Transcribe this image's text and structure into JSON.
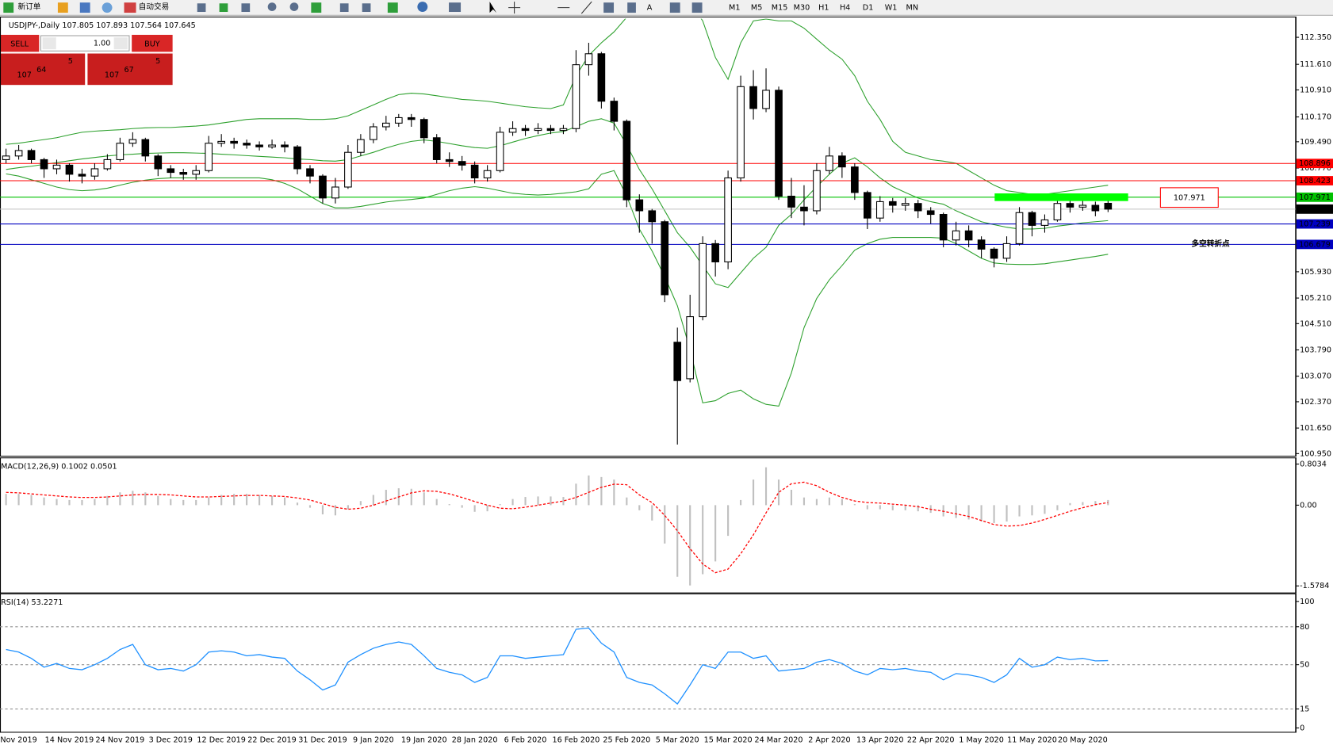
{
  "toolbar": {
    "new_order": "新订单",
    "auto_trading": "自动交易",
    "timeframes": [
      "M1",
      "M5",
      "M15",
      "M30",
      "H1",
      "H4",
      "D1",
      "W1",
      "MN"
    ]
  },
  "trade_panel": {
    "sell": "SELL",
    "buy": "BUY",
    "lots": "1.00",
    "bid": {
      "big": "107",
      "main": "64",
      "small": "5"
    },
    "ask": {
      "big": "107",
      "main": "67",
      "small": "5"
    }
  },
  "chart_data": [
    {
      "type": "candlestick",
      "title": "USDJPY-,Daily  107.805 107.893 107.564 107.645",
      "categories": [
        null,
        "Nov 2019",
        null,
        null,
        null,
        "14 Nov 2019",
        null,
        null,
        null,
        "24 Nov 2019",
        null,
        null,
        null,
        "3 Dec 2019",
        null,
        null,
        null,
        "12 Dec 2019",
        null,
        null,
        null,
        "22 Dec 2019",
        null,
        null,
        null,
        "31 Dec 2019",
        null,
        null,
        null,
        "9 Jan 2020",
        null,
        null,
        null,
        "19 Jan 2020",
        null,
        null,
        null,
        "28 Jan 2020",
        null,
        null,
        null,
        "6 Feb 2020",
        null,
        null,
        null,
        "16 Feb 2020",
        null,
        null,
        null,
        "25 Feb 2020",
        null,
        null,
        null,
        "5 Mar 2020",
        null,
        null,
        null,
        "15 Mar 2020",
        null,
        null,
        null,
        "24 Mar 2020",
        null,
        null,
        null,
        "2 Apr 2020",
        null,
        null,
        null,
        "13 Apr 2020",
        null,
        null,
        null,
        "22 Apr 2020",
        null,
        null,
        null,
        "1 May 2020",
        null,
        null,
        null,
        "11 May 2020",
        null,
        null,
        null,
        "20 May 2020",
        null,
        null
      ],
      "open": [
        109.0,
        109.1,
        109.25,
        109.0,
        108.75,
        108.85,
        108.6,
        108.55,
        108.75,
        109.0,
        109.45,
        109.55,
        109.1,
        108.75,
        108.65,
        108.6,
        108.7,
        109.45,
        109.5,
        109.45,
        109.4,
        109.35,
        109.4,
        109.35,
        108.75,
        108.55,
        107.95,
        108.25,
        109.2,
        109.55,
        109.9,
        110.0,
        110.15,
        110.1,
        109.6,
        109.0,
        108.95,
        108.85,
        108.5,
        108.7,
        109.75,
        109.85,
        109.8,
        109.85,
        109.8,
        109.85,
        111.6,
        111.9,
        110.6,
        110.05,
        107.9,
        107.6,
        107.3,
        104.0,
        103.0,
        104.7,
        106.7,
        106.2,
        108.5,
        111.0,
        110.4,
        110.9,
        108.0,
        107.7,
        107.6,
        108.7,
        109.1,
        108.8,
        108.1,
        107.4,
        107.85,
        107.75,
        107.8,
        107.6,
        107.5,
        106.8,
        107.05,
        106.8,
        106.55,
        106.3,
        106.7,
        107.55,
        107.2,
        107.35,
        107.8,
        107.7,
        107.75,
        107.805
      ],
      "high": [
        109.3,
        109.4,
        109.3,
        109.05,
        109.0,
        108.9,
        108.75,
        108.9,
        109.15,
        109.6,
        109.75,
        109.6,
        109.15,
        108.85,
        108.75,
        108.85,
        109.65,
        109.7,
        109.6,
        109.55,
        109.5,
        109.55,
        109.5,
        109.4,
        108.85,
        108.6,
        108.5,
        109.4,
        109.7,
        110.0,
        110.2,
        110.25,
        110.25,
        110.15,
        109.7,
        109.2,
        109.1,
        108.95,
        108.85,
        109.9,
        110.05,
        109.95,
        110.0,
        109.95,
        109.95,
        112.0,
        112.2,
        111.95,
        110.7,
        110.1,
        108.05,
        107.65,
        107.35,
        104.4,
        105.3,
        106.9,
        106.8,
        108.7,
        111.3,
        111.45,
        111.5,
        111.0,
        108.5,
        108.3,
        108.9,
        109.35,
        109.2,
        108.9,
        108.15,
        108.0,
        107.95,
        107.95,
        107.9,
        107.7,
        107.55,
        107.3,
        107.2,
        106.9,
        106.6,
        106.9,
        107.7,
        107.6,
        107.5,
        107.95,
        107.9,
        107.9,
        107.85,
        107.893
      ],
      "low": [
        108.9,
        109.0,
        108.9,
        108.5,
        108.6,
        108.4,
        108.35,
        108.45,
        108.7,
        108.95,
        109.35,
        108.95,
        108.55,
        108.5,
        108.45,
        108.45,
        108.65,
        109.35,
        109.3,
        109.3,
        109.25,
        109.3,
        109.2,
        108.6,
        108.35,
        107.8,
        107.8,
        108.2,
        109.1,
        109.45,
        109.8,
        109.9,
        109.9,
        109.45,
        108.9,
        108.8,
        108.7,
        108.35,
        108.4,
        108.65,
        109.65,
        109.65,
        109.7,
        109.7,
        109.7,
        109.75,
        111.3,
        110.4,
        109.8,
        107.7,
        107.0,
        106.7,
        105.1,
        101.2,
        102.9,
        104.6,
        105.8,
        106.0,
        108.4,
        110.1,
        110.3,
        107.9,
        107.4,
        107.2,
        107.5,
        108.6,
        108.5,
        107.9,
        107.1,
        107.3,
        107.55,
        107.6,
        107.4,
        107.25,
        106.6,
        106.65,
        106.6,
        106.3,
        106.05,
        106.2,
        106.65,
        106.9,
        107.0,
        107.3,
        107.55,
        107.6,
        107.45,
        107.564
      ],
      "close": [
        109.1,
        109.25,
        109.0,
        108.75,
        108.85,
        108.6,
        108.55,
        108.75,
        109.0,
        109.45,
        109.55,
        109.1,
        108.75,
        108.65,
        108.6,
        108.7,
        109.45,
        109.5,
        109.45,
        109.4,
        109.35,
        109.4,
        109.35,
        108.75,
        108.55,
        107.95,
        108.25,
        109.2,
        109.55,
        109.9,
        110.0,
        110.15,
        110.1,
        109.6,
        109.0,
        108.95,
        108.85,
        108.5,
        108.7,
        109.75,
        109.85,
        109.8,
        109.85,
        109.8,
        109.85,
        111.6,
        111.9,
        110.6,
        110.05,
        107.9,
        107.6,
        107.3,
        105.3,
        102.95,
        104.7,
        106.7,
        106.2,
        108.5,
        111.0,
        110.4,
        110.9,
        108.0,
        107.7,
        107.6,
        108.7,
        109.1,
        108.8,
        108.1,
        107.4,
        107.85,
        107.75,
        107.8,
        107.6,
        107.5,
        106.8,
        107.05,
        106.8,
        106.55,
        106.3,
        106.7,
        107.55,
        107.2,
        107.35,
        107.8,
        107.7,
        107.75,
        107.6,
        107.645
      ],
      "up_color": "#ffffff",
      "down_color": "#000000",
      "wick_color": "#000000",
      "bands": {
        "color": "#2ca02c",
        "upper": [
          109.42,
          109.45,
          109.5,
          109.55,
          109.6,
          109.68,
          109.75,
          109.78,
          109.8,
          109.82,
          109.85,
          109.87,
          109.88,
          109.88,
          109.9,
          109.92,
          109.95,
          110.0,
          110.05,
          110.1,
          110.12,
          110.12,
          110.12,
          110.12,
          110.1,
          110.1,
          110.12,
          110.2,
          110.35,
          110.5,
          110.65,
          110.78,
          110.82,
          110.8,
          110.75,
          110.7,
          110.65,
          110.63,
          110.6,
          110.55,
          110.5,
          110.45,
          110.42,
          110.4,
          110.5,
          111.3,
          111.85,
          112.2,
          112.5,
          112.9,
          113.3,
          113.6,
          113.8,
          113.7,
          113.3,
          112.8,
          111.8,
          111.2,
          112.2,
          112.8,
          112.85,
          112.8,
          112.8,
          112.6,
          112.3,
          112.0,
          111.75,
          111.3,
          110.6,
          110.1,
          109.5,
          109.2,
          109.1,
          109.0,
          108.96,
          108.9,
          108.7,
          108.5,
          108.3,
          108.15,
          108.1,
          108.05,
          108.05,
          108.1,
          108.15,
          108.2,
          108.25,
          108.3
        ],
        "middle": [
          108.73,
          108.78,
          108.82,
          108.87,
          108.92,
          108.97,
          109.02,
          109.06,
          109.1,
          109.13,
          109.15,
          109.17,
          109.18,
          109.19,
          109.19,
          109.18,
          109.17,
          109.15,
          109.13,
          109.11,
          109.09,
          109.07,
          109.05,
          109.02,
          109.0,
          108.97,
          108.96,
          109.0,
          109.1,
          109.2,
          109.32,
          109.42,
          109.5,
          109.54,
          109.5,
          109.44,
          109.38,
          109.33,
          109.31,
          109.38,
          109.48,
          109.58,
          109.66,
          109.73,
          109.77,
          109.9,
          110.05,
          110.12,
          110.0,
          109.4,
          108.73,
          108.2,
          107.6,
          107.0,
          106.6,
          106.1,
          105.6,
          105.5,
          105.9,
          106.3,
          106.6,
          107.2,
          107.5,
          107.9,
          108.26,
          108.6,
          108.9,
          109.05,
          108.8,
          108.5,
          108.26,
          108.1,
          107.95,
          107.85,
          107.78,
          107.6,
          107.45,
          107.3,
          107.22,
          107.15,
          107.1,
          107.1,
          107.12,
          107.18,
          107.22,
          107.27,
          107.3,
          107.33
        ],
        "lower": [
          108.61,
          108.55,
          108.45,
          108.35,
          108.25,
          108.18,
          108.15,
          108.17,
          108.22,
          108.3,
          108.38,
          108.44,
          108.48,
          108.5,
          108.5,
          108.5,
          108.5,
          108.5,
          108.5,
          108.5,
          108.5,
          108.45,
          108.35,
          108.2,
          108.0,
          107.8,
          107.68,
          107.68,
          107.72,
          107.78,
          107.84,
          107.88,
          107.91,
          107.95,
          108.05,
          108.15,
          108.22,
          108.26,
          108.22,
          108.15,
          108.08,
          108.05,
          108.03,
          108.05,
          108.08,
          108.12,
          108.2,
          108.6,
          108.7,
          108.0,
          107.1,
          106.5,
          105.8,
          105.0,
          103.8,
          102.34,
          102.4,
          102.6,
          102.69,
          102.45,
          102.3,
          102.25,
          103.16,
          104.4,
          105.2,
          105.71,
          106.1,
          106.52,
          106.7,
          106.82,
          106.87,
          106.87,
          106.87,
          106.87,
          106.85,
          106.7,
          106.5,
          106.3,
          106.17,
          106.14,
          106.13,
          106.13,
          106.15,
          106.2,
          106.25,
          106.3,
          106.35,
          106.41
        ]
      },
      "ylim": [
        100.88,
        112.86
      ],
      "yticks": [
        {
          "value": 112.35,
          "label": "112.350"
        },
        {
          "value": 111.61,
          "label": "111.610"
        },
        {
          "value": 110.91,
          "label": "110.910"
        },
        {
          "value": 110.17,
          "label": "110.170"
        },
        {
          "value": 109.49,
          "label": "109.490"
        },
        {
          "value": 108.77,
          "label": "108.770"
        },
        {
          "value": 105.93,
          "label": "105.930"
        },
        {
          "value": 105.21,
          "label": "105.210"
        },
        {
          "value": 104.51,
          "label": "104.510"
        },
        {
          "value": 103.79,
          "label": "103.790"
        },
        {
          "value": 103.07,
          "label": "103.070"
        },
        {
          "value": 102.37,
          "label": "102.370"
        },
        {
          "value": 101.65,
          "label": "101.650"
        },
        {
          "value": 100.95,
          "label": "100.950"
        }
      ],
      "hlines": [
        {
          "value": 108.896,
          "label": "108.896",
          "color": "#ff0000",
          "label_color": "#ffffff"
        },
        {
          "value": 108.423,
          "label": "108.423",
          "color": "#ff0000",
          "label_color": "#ffffff"
        },
        {
          "value": 107.971,
          "label": "107.971",
          "color": "#00c000",
          "label_color": "#000000",
          "highlight_color": "#00ff00"
        },
        {
          "value": 107.645,
          "label": "107.645",
          "color": "#c0c0c0",
          "label_color": "#ffffff"
        },
        {
          "value": 107.239,
          "label": "107.239",
          "color": "#0000c0",
          "label_color": "#ffffff"
        },
        {
          "value": 106.679,
          "label": "106.679",
          "color": "#0000c0",
          "label_color": "#ffffff"
        }
      ],
      "annotations": [
        {
          "text": "107.971",
          "color": "#ff0000"
        },
        {
          "text": "多空转折点",
          "color": "#00b400"
        }
      ]
    },
    {
      "type": "macd",
      "title": "MACD(12,26,9) 0.1002 0.0501",
      "values": [
        0.22,
        0.22,
        0.2,
        0.15,
        0.12,
        0.1,
        0.1,
        0.12,
        0.18,
        0.25,
        0.28,
        0.25,
        0.18,
        0.12,
        0.1,
        0.1,
        0.15,
        0.2,
        0.22,
        0.22,
        0.2,
        0.18,
        0.15,
        0.05,
        -0.05,
        -0.18,
        -0.2,
        -0.08,
        0.08,
        0.2,
        0.3,
        0.33,
        0.32,
        0.25,
        0.12,
        0.02,
        -0.05,
        -0.13,
        -0.12,
        0.02,
        0.12,
        0.16,
        0.17,
        0.17,
        0.16,
        0.42,
        0.58,
        0.55,
        0.5,
        0.15,
        -0.1,
        -0.3,
        -0.75,
        -1.4,
        -1.57,
        -1.35,
        -1.1,
        -0.6,
        0.1,
        0.5,
        0.74,
        0.5,
        0.3,
        0.15,
        0.12,
        0.15,
        0.12,
        0.02,
        -0.08,
        -0.08,
        -0.1,
        -0.1,
        -0.12,
        -0.15,
        -0.22,
        -0.25,
        -0.28,
        -0.32,
        -0.35,
        -0.32,
        -0.22,
        -0.2,
        -0.17,
        -0.1,
        0.04,
        0.06,
        0.08,
        0.1002
      ],
      "signal": [
        0.25,
        0.24,
        0.22,
        0.2,
        0.18,
        0.16,
        0.15,
        0.15,
        0.16,
        0.18,
        0.2,
        0.21,
        0.21,
        0.2,
        0.18,
        0.16,
        0.16,
        0.17,
        0.18,
        0.19,
        0.19,
        0.18,
        0.17,
        0.14,
        0.1,
        0.03,
        -0.04,
        -0.08,
        -0.06,
        0.0,
        0.08,
        0.16,
        0.24,
        0.28,
        0.27,
        0.22,
        0.15,
        0.07,
        0.0,
        -0.06,
        -0.07,
        -0.04,
        0.0,
        0.04,
        0.08,
        0.15,
        0.25,
        0.35,
        0.41,
        0.4,
        0.2,
        0.05,
        -0.2,
        -0.5,
        -0.85,
        -1.15,
        -1.32,
        -1.25,
        -0.95,
        -0.58,
        -0.15,
        0.25,
        0.42,
        0.45,
        0.38,
        0.25,
        0.15,
        0.08,
        0.05,
        0.04,
        0.02,
        0.0,
        -0.03,
        -0.08,
        -0.12,
        -0.17,
        -0.22,
        -0.3,
        -0.38,
        -0.41,
        -0.4,
        -0.35,
        -0.28,
        -0.2,
        -0.12,
        -0.05,
        0.01,
        0.0501
      ],
      "color": "#c0c0c0",
      "signal_color": "#ff0000",
      "ylim": [
        -1.716,
        0.891
      ],
      "yticks": [
        0.8034,
        {
          "value": 0,
          "label": "0.00"
        },
        -1.5784
      ]
    },
    {
      "type": "line",
      "title": "RSI(14) 53.2271",
      "values": [
        62,
        60,
        55,
        48,
        51,
        47,
        46,
        50,
        55,
        62,
        66,
        50,
        46,
        47,
        45,
        50,
        60,
        61,
        60,
        57,
        58,
        56,
        55,
        45,
        38,
        30,
        34,
        52,
        58,
        63,
        66,
        68,
        66,
        57,
        47,
        44,
        42,
        36,
        40,
        57,
        57,
        55,
        56,
        57,
        58,
        78,
        79,
        67,
        60,
        40,
        36,
        34,
        27,
        19,
        34,
        50,
        47,
        60,
        60,
        55,
        57,
        45,
        46,
        47,
        52,
        54,
        51,
        45,
        42,
        47,
        46,
        47,
        45,
        44,
        38,
        43,
        42,
        40,
        36,
        42,
        55,
        48,
        50,
        56,
        54,
        55,
        53,
        53.2271
      ],
      "color": "#1e90ff",
      "ylim": [
        -3.4,
        104.7
      ],
      "yticks": [
        100,
        80,
        50,
        15,
        0
      ],
      "levels": [
        80,
        50,
        15
      ]
    }
  ]
}
